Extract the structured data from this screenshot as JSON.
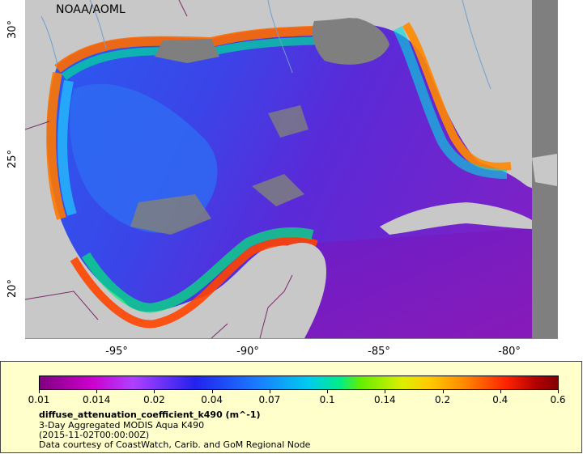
{
  "map": {
    "attribution": "NOAA/AOML",
    "x_ticks": [
      "-95°",
      "-90°",
      "-85°",
      "-80°"
    ],
    "y_ticks": [
      "30°",
      "25°",
      "20°"
    ],
    "colors": {
      "land": "#c8c8c8",
      "no_data": "#7f7f7f",
      "border": "#7a2a6a",
      "river": "#6f9fcf"
    }
  },
  "legend": {
    "colorbar_labels": [
      "0.01",
      "0.014",
      "0.02",
      "0.04",
      "0.07",
      "0.1",
      "0.14",
      "0.2",
      "0.4",
      "0.6"
    ],
    "variable": "diffuse_attenuation_coefficient_k490 (m^-1)",
    "product": "3-Day Aggregated MODIS Aqua K490",
    "date": "(2015-11-02T00:00:00Z)",
    "credit": "Data courtesy of CoastWatch, Carib. and GoM Regional Node"
  }
}
